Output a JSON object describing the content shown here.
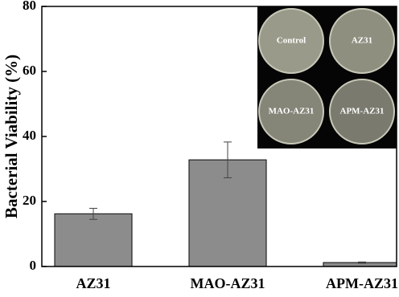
{
  "chart_data": {
    "type": "bar",
    "ylabel": "Bacterial Viability (%)",
    "categories": [
      "AZ31",
      "MAO-AZ31",
      "APM-AZ31"
    ],
    "values": [
      16.2,
      32.8,
      1.2
    ],
    "errors": [
      1.7,
      5.5,
      0.2
    ],
    "color": "#8c8c8c",
    "ylim": [
      0,
      80
    ],
    "yticks": [
      0,
      20,
      40,
      60,
      80
    ],
    "annotations": [
      "Control",
      "AZ31",
      "MAO-AZ31",
      "APM-AZ31"
    ]
  }
}
